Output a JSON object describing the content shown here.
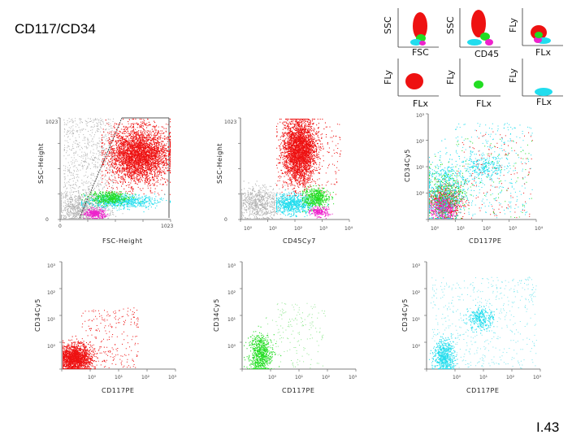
{
  "title": "CD117/CD34",
  "slide_number": "I.43",
  "legend": {
    "panel1": {
      "y": "SSC",
      "x": "FSC"
    },
    "panel2": {
      "y": "SSC",
      "x": "CD45"
    },
    "panel3": {
      "y": "FLy",
      "x": "FLx"
    },
    "panel4": {
      "y": "FLy",
      "x": "FLx"
    },
    "panel5": {
      "y": "FLy",
      "x": "FLx"
    },
    "panel6": {
      "y": "FLy",
      "x": "FLx"
    }
  },
  "plots": {
    "p1": {
      "x": "FSC-Height",
      "y": "SSC-Height",
      "ticks": [
        "0",
        "1023",
        "0",
        "1023"
      ]
    },
    "p2": {
      "x": "CD45Cy7",
      "y": "SSC-Height",
      "ticks": [
        "0",
        "1023",
        "10⁰",
        "10¹",
        "10²",
        "10³",
        "10⁴"
      ]
    },
    "p3": {
      "x": "CD117PE",
      "y": "CD34Cy5",
      "ticks": [
        "10⁰",
        "10¹",
        "10²",
        "10³",
        "10⁰",
        "10¹",
        "10²",
        "10³",
        "10⁴"
      ]
    },
    "p4": {
      "x": "CD117PE",
      "y": "CD34Cy5"
    },
    "p5": {
      "x": "CD117PE",
      "y": "CD34Cy5"
    },
    "p6": {
      "x": "CD117PE",
      "y": "CD34Cy5"
    }
  },
  "colors": {
    "red": "#ee1111",
    "green": "#22dd22",
    "cyan": "#22ddee",
    "magenta": "#ee22cc",
    "gray": "#b4b4b4"
  }
}
